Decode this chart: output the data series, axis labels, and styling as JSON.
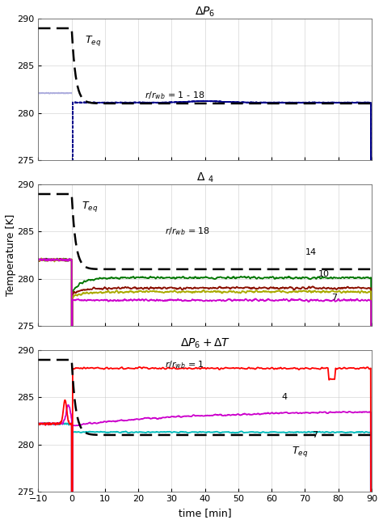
{
  "title1": "$\\Delta P_6$",
  "title2": "$\\Delta \\ _4$",
  "title3": "$\\Delta P_6+\\Delta T$",
  "ylabel": "Temperature [K]",
  "xlabel": "time [min]",
  "xlim": [
    -10,
    90
  ],
  "ylim": [
    275,
    290
  ],
  "yticks": [
    275,
    280,
    285,
    290
  ],
  "xticks": [
    -10,
    0,
    10,
    20,
    30,
    40,
    50,
    60,
    70,
    80,
    90
  ],
  "bg_color": "#ffffff",
  "p1_bundle_color": "#00008B",
  "p1_light_color": "#aaaadd",
  "p2_colors": [
    "#007700",
    "#8B1000",
    "#aaaa00",
    "#cc00cc"
  ],
  "p3_colors": [
    "#ff0000",
    "#cc00cc",
    "#00bbbb"
  ],
  "teq_color": "#000000"
}
